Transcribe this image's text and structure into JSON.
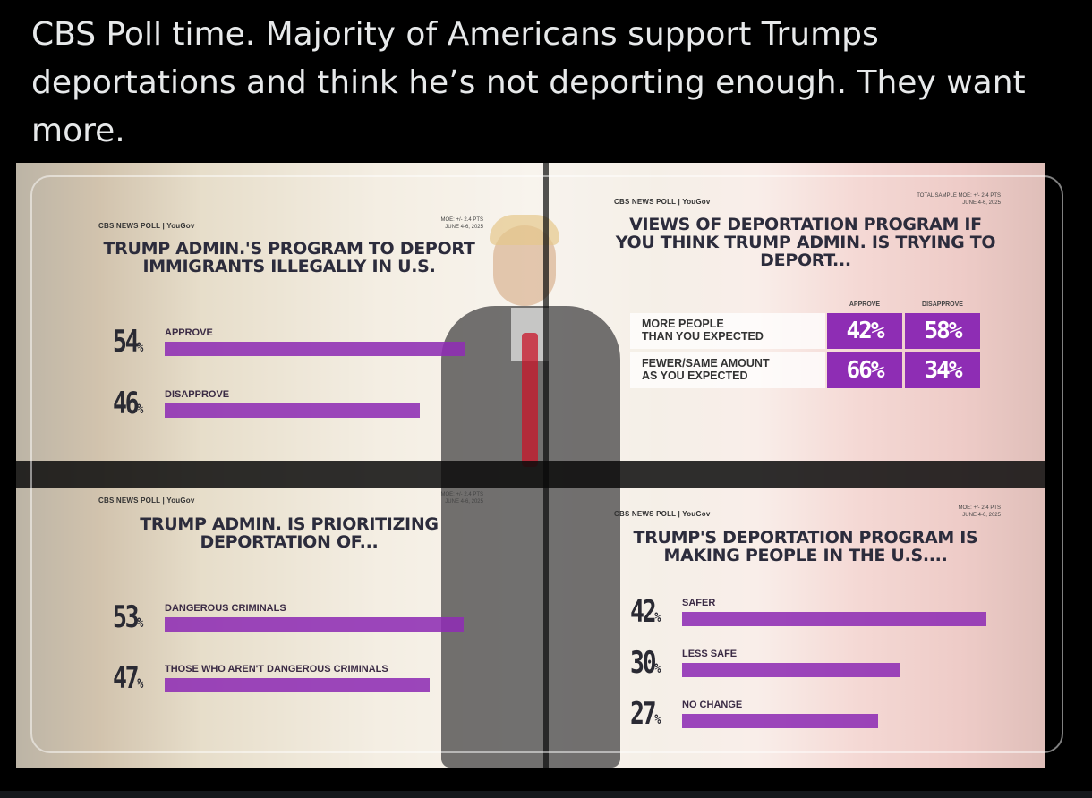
{
  "tweet": {
    "text": "CBS Poll time. Majority of Americans support Trumps deportations and think he’s not deporting enough. They want more."
  },
  "colors": {
    "bar": "#8e2db4",
    "background": "#000000",
    "text": "#e7e9ea"
  },
  "chart_data": [
    {
      "type": "bar",
      "brand": "CBS NEWS POLL | YouGov",
      "moe": "MOE: +/- 2.4 PTS\nJUNE 4-6, 2025",
      "title": "TRUMP ADMIN.'S PROGRAM TO DEPORT IMMIGRANTS ILLEGALLY IN U.S.",
      "categories": [
        "APPROVE",
        "DISAPPROVE"
      ],
      "values": [
        54,
        46
      ],
      "value_labels": [
        "54",
        "46"
      ],
      "unit": "%"
    },
    {
      "type": "table",
      "brand": "CBS NEWS POLL | YouGov",
      "moe": "TOTAL SAMPLE MOE: +/- 2.4 PTS\nJUNE 4-6, 2025",
      "title": "VIEWS OF DEPORTATION PROGRAM IF YOU THINK TRUMP ADMIN. IS TRYING TO DEPORT...",
      "columns": [
        "APPROVE",
        "DISAPPROVE"
      ],
      "rows": [
        {
          "label_line1": "MORE PEOPLE",
          "label_line2": "THAN YOU EXPECTED",
          "values": [
            "42%",
            "58%"
          ]
        },
        {
          "label_line1": "FEWER/SAME AMOUNT",
          "label_line2": "AS YOU EXPECTED",
          "values": [
            "66%",
            "34%"
          ]
        }
      ]
    },
    {
      "type": "bar",
      "brand": "CBS NEWS POLL | YouGov",
      "moe": "MOE: +/- 2.4 PTS\nJUNE 4-6, 2025",
      "title": "TRUMP ADMIN. IS PRIORITIZING DEPORTATION OF...",
      "categories": [
        "DANGEROUS CRIMINALS",
        "THOSE WHO AREN'T DANGEROUS CRIMINALS"
      ],
      "values": [
        53,
        47
      ],
      "value_labels": [
        "53",
        "47"
      ],
      "unit": "%"
    },
    {
      "type": "bar",
      "brand": "CBS NEWS POLL | YouGov",
      "moe": "MOE: +/- 2.4 PTS\nJUNE 4-6, 2025",
      "title": "TRUMP'S DEPORTATION PROGRAM IS MAKING PEOPLE IN THE U.S....",
      "categories": [
        "SAFER",
        "LESS SAFE",
        "NO CHANGE"
      ],
      "values": [
        42,
        30,
        27
      ],
      "value_labels": [
        "42",
        "30",
        "27"
      ],
      "unit": "%"
    }
  ]
}
